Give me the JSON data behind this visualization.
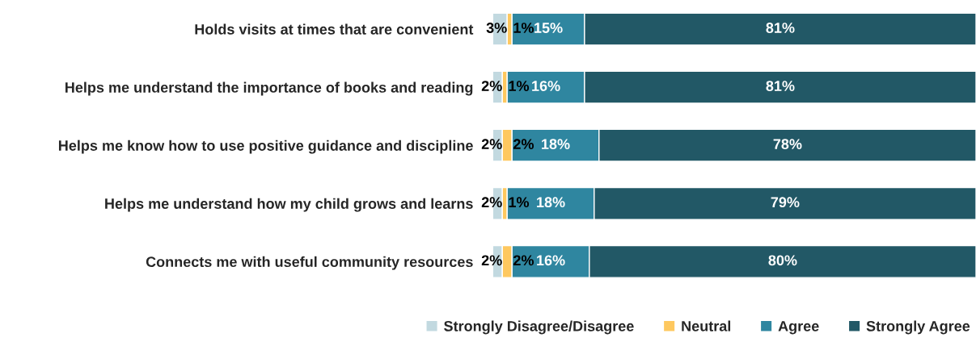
{
  "chart_data": {
    "type": "bar",
    "orientation": "horizontal",
    "stacked": true,
    "categories": [
      "Holds visits at times that are convenient",
      "Helps me understand the importance of books and reading",
      "Helps me know how to use positive guidance and discipline",
      "Helps me understand how my child grows and learns",
      "Connects me with useful community resources"
    ],
    "series": [
      {
        "name": "Strongly Disagree/Disagree",
        "color": "#c2d9e0",
        "values": [
          3,
          2,
          2,
          2,
          2
        ],
        "value_labels": [
          "3%",
          "2%",
          "2%",
          "2%",
          "2%"
        ]
      },
      {
        "name": "Neutral",
        "color": "#fec85f",
        "values": [
          1,
          1,
          2,
          1,
          2
        ],
        "value_labels": [
          "1%",
          "1%",
          "2%",
          "1%",
          "2%"
        ]
      },
      {
        "name": "Agree",
        "color": "#2f86a0",
        "values": [
          15,
          16,
          18,
          18,
          16
        ],
        "value_labels": [
          "15%",
          "16%",
          "18%",
          "18%",
          "16%"
        ]
      },
      {
        "name": "Strongly Agree",
        "color": "#225866",
        "values": [
          81,
          81,
          78,
          79,
          80
        ],
        "value_labels": [
          "81%",
          "81%",
          "78%",
          "79%",
          "80%"
        ]
      }
    ],
    "legend": "bottom",
    "grid": false,
    "tick_labels": "y"
  }
}
